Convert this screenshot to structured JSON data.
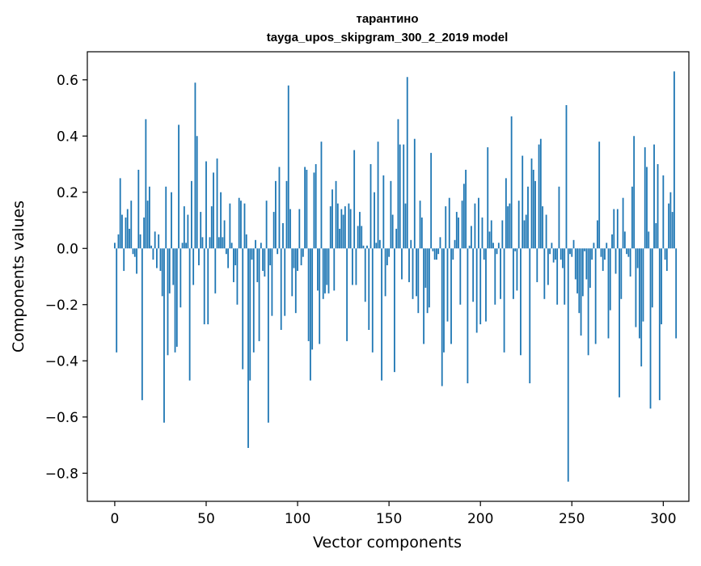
{
  "chart_data": {
    "type": "bar",
    "title_line1": "тарантино",
    "title_line2": "tayga_upos_skipgram_300_2_2019 model",
    "xlabel": "Vector components",
    "ylabel": "Components values",
    "xlim": [
      -15,
      314
    ],
    "ylim": [
      -0.9,
      0.7
    ],
    "x_ticks": [
      0,
      50,
      100,
      150,
      200,
      250,
      300
    ],
    "x_tick_labels": [
      "0",
      "50",
      "100",
      "150",
      "200",
      "250",
      "300"
    ],
    "y_ticks": [
      0.6,
      0.4,
      0.2,
      0.0,
      -0.2,
      -0.4,
      -0.6,
      -0.8
    ],
    "y_tick_labels": [
      "0.6",
      "0.4",
      "0.2",
      "0.0",
      "−0.2",
      "−0.4",
      "−0.6",
      "−0.8"
    ],
    "bar_color": "#1f77b4",
    "grid": false,
    "values": [
      0.02,
      -0.37,
      0.05,
      0.25,
      0.12,
      -0.08,
      0.11,
      0.14,
      0.07,
      0.17,
      -0.02,
      -0.03,
      -0.09,
      0.28,
      0.05,
      -0.54,
      0.11,
      0.46,
      0.17,
      0.22,
      0.01,
      -0.04,
      0.06,
      -0.07,
      0.05,
      -0.08,
      -0.17,
      -0.62,
      0.22,
      -0.38,
      -0.16,
      0.2,
      -0.13,
      -0.37,
      -0.35,
      0.44,
      -0.21,
      0.02,
      0.15,
      0.02,
      0.12,
      -0.47,
      0.24,
      -0.13,
      0.59,
      0.4,
      -0.06,
      0.13,
      0.04,
      -0.27,
      0.31,
      -0.27,
      0.04,
      0.15,
      0.27,
      -0.16,
      0.32,
      0.04,
      0.2,
      0.04,
      0.1,
      -0.02,
      -0.07,
      0.16,
      0.02,
      -0.12,
      -0.06,
      -0.2,
      0.18,
      0.17,
      -0.43,
      0.16,
      0.05,
      -0.71,
      -0.47,
      -0.04,
      -0.37,
      0.03,
      -0.12,
      -0.33,
      0.02,
      -0.08,
      -0.1,
      0.17,
      -0.62,
      -0.06,
      -0.24,
      0.13,
      0.24,
      -0.02,
      0.29,
      -0.29,
      0.09,
      -0.24,
      0.24,
      0.58,
      0.14,
      -0.17,
      -0.07,
      -0.23,
      -0.08,
      0.14,
      -0.06,
      -0.03,
      0.29,
      0.28,
      -0.33,
      -0.47,
      -0.36,
      0.27,
      0.3,
      -0.15,
      -0.34,
      0.38,
      -0.18,
      -0.16,
      -0.13,
      -0.16,
      0.15,
      0.21,
      -0.15,
      0.24,
      0.16,
      0.07,
      0.14,
      0.12,
      0.15,
      -0.33,
      0.16,
      0.14,
      -0.13,
      0.35,
      -0.13,
      0.08,
      0.13,
      0.08,
      0.01,
      -0.19,
      0.01,
      -0.29,
      0.3,
      -0.37,
      0.2,
      0.02,
      0.38,
      0.03,
      -0.47,
      0.26,
      -0.17,
      -0.06,
      -0.03,
      0.24,
      0.12,
      -0.44,
      0.07,
      0.46,
      0.37,
      -0.11,
      0.37,
      0.16,
      0.61,
      -0.12,
      0.03,
      -0.18,
      0.39,
      -0.17,
      -0.23,
      0.17,
      0.11,
      -0.34,
      -0.14,
      -0.23,
      -0.21,
      0.34,
      -0.01,
      -0.04,
      -0.04,
      -0.02,
      0.04,
      -0.49,
      -0.37,
      0.15,
      -0.26,
      0.18,
      -0.34,
      -0.04,
      0.03,
      0.13,
      0.11,
      -0.2,
      0.17,
      0.23,
      0.28,
      -0.48,
      0.01,
      0.08,
      -0.19,
      0.16,
      -0.3,
      0.18,
      -0.27,
      0.11,
      -0.04,
      -0.26,
      0.36,
      0.06,
      0.1,
      0.02,
      -0.2,
      -0.02,
      0.02,
      -0.18,
      0.1,
      -0.37,
      0.25,
      0.15,
      0.16,
      0.47,
      -0.18,
      -0.01,
      -0.15,
      0.17,
      -0.38,
      0.33,
      0.1,
      0.12,
      0.22,
      -0.48,
      0.32,
      0.28,
      0.24,
      -0.12,
      0.37,
      0.39,
      0.15,
      -0.18,
      0.12,
      -0.13,
      -0.02,
      0.02,
      -0.05,
      -0.04,
      -0.2,
      0.22,
      -0.04,
      -0.07,
      -0.2,
      0.51,
      -0.83,
      -0.02,
      -0.03,
      0.03,
      -0.11,
      -0.16,
      -0.23,
      -0.31,
      -0.17,
      -0.01,
      -0.11,
      -0.38,
      -0.14,
      -0.04,
      0.02,
      -0.34,
      0.1,
      0.38,
      -0.03,
      -0.08,
      -0.04,
      0.02,
      -0.32,
      -0.22,
      0.05,
      0.14,
      -0.09,
      0.14,
      -0.53,
      -0.18,
      0.18,
      0.06,
      -0.02,
      -0.03,
      -0.1,
      0.22,
      0.4,
      -0.28,
      -0.07,
      -0.32,
      -0.42,
      -0.26,
      0.36,
      0.29,
      0.06,
      -0.57,
      -0.21,
      0.37,
      0.09,
      0.3,
      -0.54,
      -0.27,
      0.26,
      -0.04,
      -0.08,
      0.16,
      0.2,
      0.13,
      0.63,
      -0.32
    ]
  }
}
